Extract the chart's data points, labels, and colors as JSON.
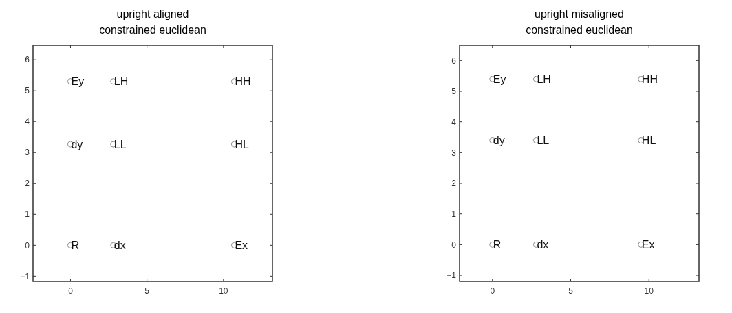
{
  "chart_data": [
    {
      "type": "scatter",
      "title": "upright aligned",
      "subtitle": "constrained euclidean",
      "xlim": [
        -2.45,
        13.2
      ],
      "ylim": [
        -1.17,
        6.47
      ],
      "xticks": [
        0,
        5,
        10
      ],
      "yticks": [
        -1,
        0,
        1,
        2,
        3,
        4,
        5,
        6
      ],
      "marker": "circle",
      "series": [
        {
          "color": "#8c8c8c",
          "x": [
            0,
            2.8,
            10.7,
            0,
            2.8,
            10.7,
            0,
            2.8,
            10.7
          ],
          "values": [
            5.3,
            5.3,
            5.3,
            3.27,
            3.27,
            3.27,
            0,
            0,
            0
          ]
        }
      ],
      "annotations": [
        {
          "text": "Ey",
          "x": 0,
          "y": 5.3
        },
        {
          "text": "LH",
          "x": 2.8,
          "y": 5.3
        },
        {
          "text": "HH",
          "x": 10.7,
          "y": 5.3
        },
        {
          "text": "dy",
          "x": 0,
          "y": 3.27
        },
        {
          "text": "LL",
          "x": 2.8,
          "y": 3.27
        },
        {
          "text": "HL",
          "x": 10.7,
          "y": 3.27
        },
        {
          "text": "R",
          "x": 0,
          "y": 0
        },
        {
          "text": "dx",
          "x": 2.8,
          "y": 0
        },
        {
          "text": "Ex",
          "x": 10.7,
          "y": 0
        }
      ]
    },
    {
      "type": "scatter",
      "title": "upright misaligned",
      "subtitle": "constrained euclidean",
      "xlim": [
        -2.1,
        13.2
      ],
      "ylim": [
        -1.2,
        6.5
      ],
      "xticks": [
        0,
        5,
        10
      ],
      "yticks": [
        -1,
        0,
        1,
        2,
        3,
        4,
        5,
        6
      ],
      "marker": "circle",
      "series": [
        {
          "color": "#8c8c8c",
          "x": [
            0,
            2.8,
            9.5,
            0,
            2.8,
            9.5,
            0,
            2.8,
            9.5
          ],
          "values": [
            5.4,
            5.4,
            5.4,
            3.4,
            3.4,
            3.4,
            0,
            0,
            0
          ]
        }
      ],
      "annotations": [
        {
          "text": "Ey",
          "x": 0,
          "y": 5.4
        },
        {
          "text": "LH",
          "x": 2.8,
          "y": 5.4
        },
        {
          "text": "HH",
          "x": 9.5,
          "y": 5.4
        },
        {
          "text": "dy",
          "x": 0,
          "y": 3.4
        },
        {
          "text": "LL",
          "x": 2.8,
          "y": 3.4
        },
        {
          "text": "HL",
          "x": 9.5,
          "y": 3.4
        },
        {
          "text": "R",
          "x": 0,
          "y": 0
        },
        {
          "text": "dx",
          "x": 2.8,
          "y": 0
        },
        {
          "text": "Ex",
          "x": 9.5,
          "y": 0
        }
      ]
    }
  ]
}
